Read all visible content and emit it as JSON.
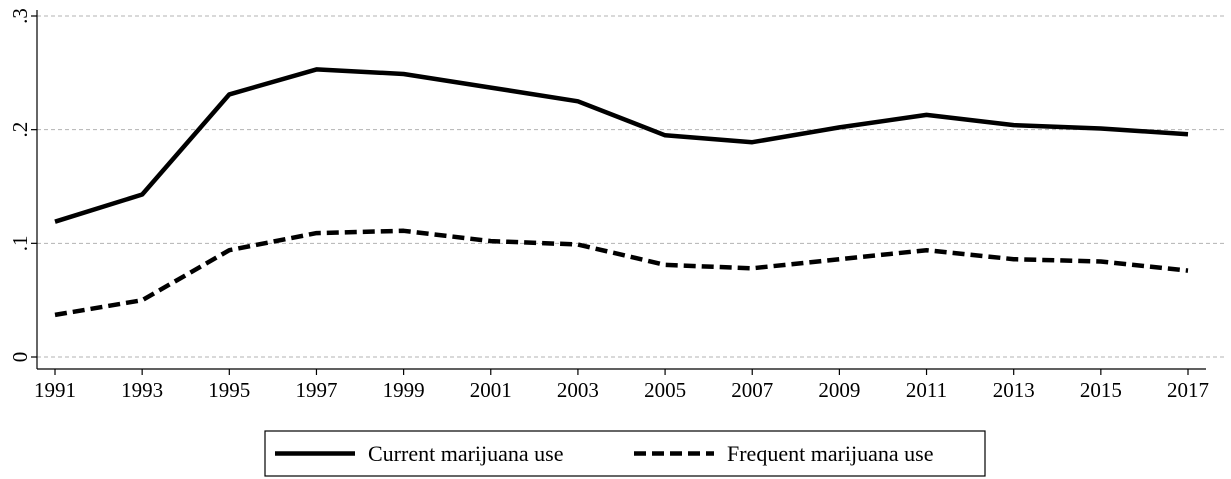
{
  "chart_data": {
    "type": "line",
    "title": "",
    "xlabel": "",
    "ylabel": "",
    "x": [
      1991,
      1993,
      1995,
      1997,
      1999,
      2001,
      2003,
      2005,
      2007,
      2009,
      2011,
      2013,
      2015,
      2017
    ],
    "x_ticks": [
      "1991",
      "1993",
      "1995",
      "1997",
      "1999",
      "2001",
      "2003",
      "2005",
      "2007",
      "2009",
      "2011",
      "2013",
      "2015",
      "2017"
    ],
    "y_ticks": [
      {
        "value": 0,
        "label": "0"
      },
      {
        "value": 0.1,
        "label": ".1"
      },
      {
        "value": 0.2,
        "label": ".2"
      },
      {
        "value": 0.3,
        "label": ".3"
      }
    ],
    "xlim": [
      1991,
      2017
    ],
    "ylim": [
      0,
      0.3
    ],
    "grid": "horizontal dashed",
    "legend_position": "bottom",
    "series": [
      {
        "name": "Current marijuana use",
        "style": "solid",
        "color": "#000000",
        "values": [
          0.119,
          0.143,
          0.231,
          0.253,
          0.249,
          0.237,
          0.225,
          0.195,
          0.189,
          0.202,
          0.213,
          0.204,
          0.201,
          0.196
        ]
      },
      {
        "name": "Frequent marijuana use",
        "style": "dashed",
        "color": "#000000",
        "values": [
          0.037,
          0.05,
          0.094,
          0.109,
          0.111,
          0.102,
          0.099,
          0.081,
          0.078,
          0.086,
          0.094,
          0.086,
          0.084,
          0.076
        ]
      }
    ]
  }
}
